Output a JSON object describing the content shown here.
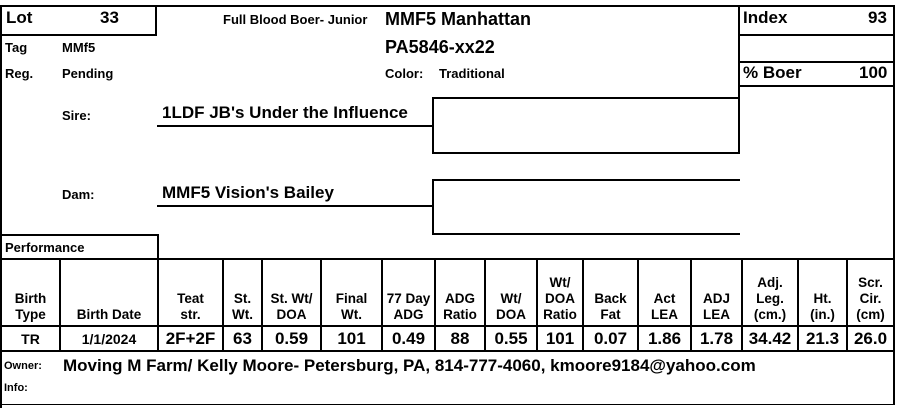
{
  "lot": {
    "label": "Lot",
    "value": "33"
  },
  "breed": "Full Blood Boer- Junior",
  "animal_name": "MMF5 Manhattan",
  "registration_no": "PA5846-xx22",
  "index": {
    "label": "Index",
    "value": "93"
  },
  "tag": {
    "label": "Tag",
    "value": "MMf5"
  },
  "reg": {
    "label": "Reg.",
    "value": "Pending"
  },
  "color": {
    "label": "Color:",
    "value": "Traditional"
  },
  "pct_boer": {
    "label": "% Boer",
    "value": "100"
  },
  "sire": {
    "label": "Sire:",
    "value": "1LDF JB's Under the Influence"
  },
  "dam": {
    "label": "Dam:",
    "value": "MMF5 Vision's Bailey"
  },
  "performance_label": "Performance",
  "table": {
    "headers": [
      [
        "Birth",
        "Type"
      ],
      [
        "Birth Date"
      ],
      [
        "Teat",
        "str."
      ],
      [
        "St.",
        "Wt."
      ],
      [
        "St. Wt/",
        "DOA"
      ],
      [
        "Final",
        "Wt."
      ],
      [
        "77 Day",
        "ADG"
      ],
      [
        "ADG",
        "Ratio"
      ],
      [
        "Wt/",
        "DOA"
      ],
      [
        "Wt/",
        "DOA",
        "Ratio"
      ],
      [
        "Back",
        "Fat"
      ],
      [
        "Act",
        "LEA"
      ],
      [
        "ADJ",
        "LEA"
      ],
      [
        "Adj.",
        "Leg.",
        "(cm.)"
      ],
      [
        "Ht.",
        "(in.)"
      ],
      [
        "Scr.",
        "Cir.",
        "(cm)"
      ]
    ],
    "values": [
      "TR",
      "1/1/2024",
      "2F+2F",
      "63",
      "0.59",
      "101",
      "0.49",
      "88",
      "0.55",
      "101",
      "0.07",
      "1.86",
      "1.78",
      "34.42",
      "21.3",
      "26.0"
    ]
  },
  "owner": {
    "label": "Owner:",
    "value": "Moving M Farm/ Kelly Moore- Petersburg, PA, 814-777-4060, kmoore9184@yahoo.com"
  },
  "info": {
    "label": "Info:",
    "value": ""
  }
}
